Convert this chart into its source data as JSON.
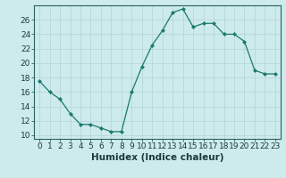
{
  "x": [
    0,
    1,
    2,
    3,
    4,
    5,
    6,
    7,
    8,
    9,
    10,
    11,
    12,
    13,
    14,
    15,
    16,
    17,
    18,
    19,
    20,
    21,
    22,
    23
  ],
  "y": [
    17.5,
    16.0,
    15.0,
    13.0,
    11.5,
    11.5,
    11.0,
    10.5,
    10.5,
    16.0,
    19.5,
    22.5,
    24.5,
    27.0,
    27.5,
    25.0,
    25.5,
    25.5,
    24.0,
    24.0,
    23.0,
    19.0,
    18.5,
    18.5
  ],
  "line_color": "#1a7a6a",
  "marker": "D",
  "marker_size": 2.0,
  "bg_color": "#cdeaed",
  "grid_color": "#b8d8db",
  "xlabel": "Humidex (Indice chaleur)",
  "xlim": [
    -0.5,
    23.5
  ],
  "ylim": [
    9.5,
    28.0
  ],
  "yticks": [
    10,
    12,
    14,
    16,
    18,
    20,
    22,
    24,
    26
  ],
  "xticks": [
    0,
    1,
    2,
    3,
    4,
    5,
    6,
    7,
    8,
    9,
    10,
    11,
    12,
    13,
    14,
    15,
    16,
    17,
    18,
    19,
    20,
    21,
    22,
    23
  ],
  "tick_fontsize": 6.5,
  "xlabel_fontsize": 7.5,
  "spine_color": "#2a6060",
  "tick_color": "#2a6060",
  "label_color": "#1a3a3a"
}
